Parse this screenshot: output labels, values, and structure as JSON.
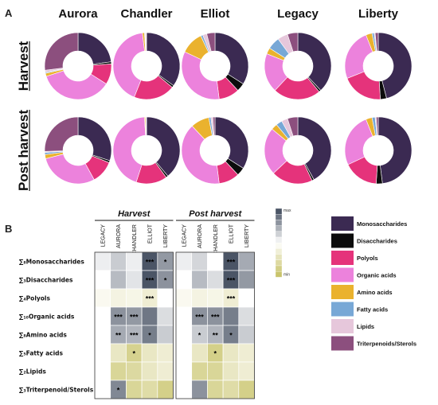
{
  "panels": {
    "a": "A",
    "b": "B"
  },
  "chart_data": {
    "type": "pie",
    "panel_a": {
      "columns": [
        "Aurora",
        "Chandler",
        "Elliot",
        "Legacy",
        "Liberty"
      ],
      "rows": [
        "Harvest",
        "Post harvest"
      ],
      "categories": [
        "Monosaccharides",
        "Disaccharides",
        "Polyols",
        "Organic acids",
        "Amino acids",
        "Fatty acids",
        "Lipids",
        "Triterpenoids/Sterols"
      ],
      "colors": [
        "#3b2a52",
        "#0c0c0c",
        "#e5337b",
        "#ec82dc",
        "#eab22e",
        "#78a8d6",
        "#e6c7db",
        "#8c4f7e"
      ],
      "values": [
        [
          [
            23,
            1,
            10,
            36,
            1.5,
            0.5,
            1,
            27
          ],
          [
            35,
            1,
            20,
            42,
            1,
            0.3,
            0.5,
            0.2
          ],
          [
            34,
            4,
            10,
            34,
            11,
            1,
            2,
            4
          ],
          [
            38,
            1,
            23,
            19,
            3,
            6,
            5,
            5
          ],
          [
            46,
            3,
            20,
            25,
            3,
            1,
            0.5,
            1.5
          ]
        ],
        [
          [
            30,
            1,
            11,
            29,
            2,
            1,
            0.5,
            25.5
          ],
          [
            39,
            1,
            15,
            44,
            0.5,
            0.2,
            0.2,
            0.1
          ],
          [
            34,
            4,
            10,
            40,
            9,
            1,
            1,
            1
          ],
          [
            42,
            1,
            20,
            23,
            3,
            3,
            3,
            5
          ],
          [
            48,
            3,
            17,
            26,
            3,
            1.5,
            0.5,
            1
          ]
        ]
      ]
    },
    "panel_b": {
      "type": "heatmap",
      "groups": [
        "Harvest",
        "Post harvest"
      ],
      "columns": [
        "LEGACY",
        "AURORA",
        "CHANDLER",
        "ELLIOT",
        "LIBERTY"
      ],
      "rows": [
        "∑₈Monosaccharides",
        "∑₃Disaccharides",
        "∑₄Polyols",
        "∑₁₀Organic acids",
        "∑₈Amino acids",
        "∑₅Fatty acids",
        "∑₂Lipids",
        "∑₃Triterpenoid/Sterols"
      ],
      "scale": {
        "max": "max",
        "min": "min",
        "max_color": "#4b5566",
        "mid_color": "#ffffff",
        "min_color": "#c9c46c"
      },
      "values": [
        [
          [
            0.55,
            0.65,
            0.55,
            1.0,
            0.8
          ],
          [
            0.5,
            0.7,
            0.58,
            1.0,
            0.82
          ],
          [
            0.45,
            0.4,
            0.42,
            0.35,
            0.5
          ],
          [
            0.5,
            0.82,
            0.8,
            0.9,
            0.6
          ],
          [
            0.5,
            0.75,
            0.72,
            0.88,
            0.65
          ],
          [
            0.5,
            0.3,
            0.12,
            0.3,
            0.35
          ],
          [
            0.5,
            0.15,
            0.18,
            0.3,
            0.35
          ],
          [
            0.5,
            0.85,
            0.15,
            0.2,
            0.1
          ]
        ],
        [
          [
            0.55,
            0.62,
            0.5,
            1.0,
            0.75
          ],
          [
            0.5,
            0.7,
            0.6,
            1.0,
            0.8
          ],
          [
            0.45,
            0.4,
            0.42,
            0.35,
            0.5
          ],
          [
            0.5,
            0.82,
            0.82,
            0.88,
            0.6
          ],
          [
            0.5,
            0.65,
            0.72,
            0.88,
            0.65
          ],
          [
            0.5,
            0.3,
            0.1,
            0.3,
            0.35
          ],
          [
            0.5,
            0.15,
            0.15,
            0.3,
            0.35
          ],
          [
            0.5,
            0.82,
            0.15,
            0.2,
            0.1
          ]
        ]
      ],
      "stars": [
        [
          [
            "",
            "",
            "",
            "***",
            "*"
          ],
          [
            "",
            "",
            "",
            "***",
            "*"
          ],
          [
            "",
            "",
            "",
            "***",
            ""
          ],
          [
            "",
            "***",
            "***",
            "",
            ""
          ],
          [
            "",
            "**",
            "***",
            "*",
            ""
          ],
          [
            "",
            "",
            "*",
            "",
            ""
          ],
          [
            "",
            "",
            "",
            "",
            ""
          ],
          [
            "",
            "*",
            "",
            "",
            ""
          ]
        ],
        [
          [
            "",
            "",
            "",
            "***",
            ""
          ],
          [
            "",
            "",
            "",
            "***",
            ""
          ],
          [
            "",
            "",
            "",
            "***",
            ""
          ],
          [
            "",
            "***",
            "***",
            "",
            ""
          ],
          [
            "",
            "*",
            "**",
            "*",
            ""
          ],
          [
            "",
            "",
            "*",
            "",
            ""
          ],
          [
            "",
            "",
            "",
            "",
            ""
          ],
          [
            "",
            "",
            "",
            "",
            ""
          ]
        ]
      ]
    }
  }
}
